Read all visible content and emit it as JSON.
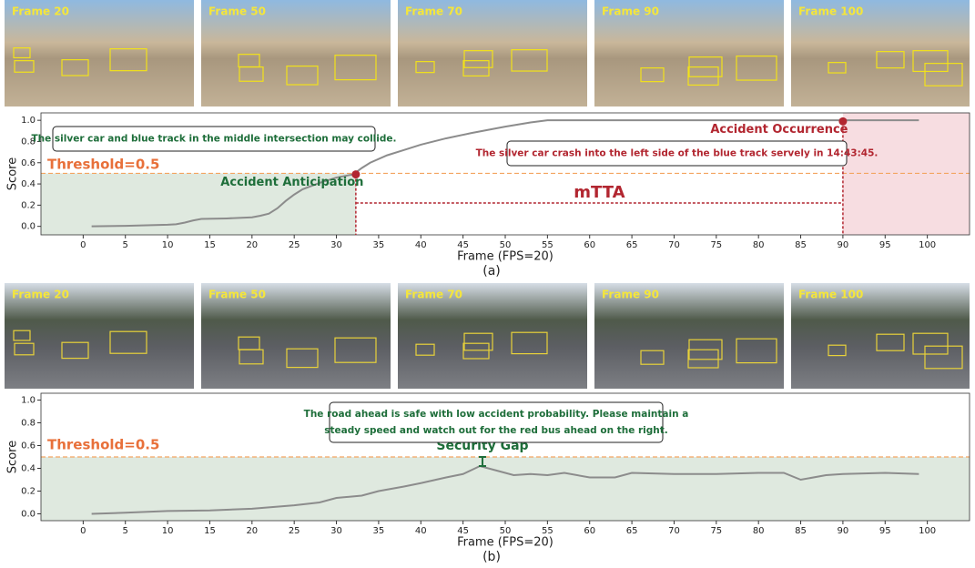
{
  "chart_data": [
    {
      "type": "line",
      "caption": "(a)",
      "frames": [
        "Frame 20",
        "Frame 50",
        "Frame 70",
        "Frame 90",
        "Frame 100"
      ],
      "xlabel": "Frame (FPS=20)",
      "ylabel": "Score",
      "xlim": [
        -5,
        105
      ],
      "ylim": [
        -0.08,
        1.07
      ],
      "xticks": [
        0,
        5,
        10,
        15,
        20,
        25,
        30,
        35,
        40,
        45,
        50,
        55,
        60,
        65,
        70,
        75,
        80,
        85,
        90,
        95,
        100
      ],
      "yticks": [
        {
          "value": 0,
          "label": "0.0"
        },
        0.2,
        0.4,
        0.6,
        0.8,
        {
          "value": 1,
          "label": "1.0"
        }
      ],
      "series": [
        {
          "color": "#8c8c8c",
          "x": [
            1,
            5,
            10,
            11,
            12,
            13,
            14,
            17,
            20,
            21,
            22,
            23,
            24,
            25,
            26,
            28,
            30,
            32,
            33,
            34,
            36,
            38,
            40,
            43,
            46,
            50,
            53,
            55,
            60,
            70,
            80,
            90,
            99
          ],
          "values": [
            0.0,
            0.005,
            0.015,
            0.02,
            0.035,
            0.055,
            0.07,
            0.075,
            0.085,
            0.1,
            0.12,
            0.17,
            0.24,
            0.3,
            0.35,
            0.41,
            0.46,
            0.49,
            0.55,
            0.6,
            0.67,
            0.72,
            0.77,
            0.83,
            0.88,
            0.94,
            0.98,
            1.0,
            1.0,
            1.0,
            1.0,
            1.0,
            1.0
          ]
        }
      ],
      "threshold": {
        "value": 0.5,
        "label": "Threshold=0.5",
        "color": "#f4a460"
      },
      "anticipation": {
        "label": "Accident Anticipation",
        "x": 32.3,
        "y": 0.49
      },
      "occurrence": {
        "label": "Accident Occurrence",
        "x": 90,
        "y": 0.99
      },
      "mtta": {
        "label": "mTTA",
        "y": 0.22
      },
      "notes": [
        [
          "The silver car and blue track in the middle intersection may collide."
        ],
        [
          "The silver car crash into the left side of the blue track servely in 14:43:45."
        ]
      ]
    },
    {
      "type": "line",
      "caption": "(b)",
      "frames": [
        "Frame 20",
        "Frame 50",
        "Frame 70",
        "Frame 90",
        "Frame 100"
      ],
      "xlabel": "Frame (FPS=20)",
      "ylabel": "Score",
      "xlim": [
        -5,
        105
      ],
      "ylim": [
        -0.06,
        1.06
      ],
      "xticks": [
        0,
        5,
        10,
        15,
        20,
        25,
        30,
        35,
        40,
        45,
        50,
        55,
        60,
        65,
        70,
        75,
        80,
        85,
        90,
        95,
        100
      ],
      "yticks": [
        {
          "value": 0,
          "label": "0.0"
        },
        0.2,
        0.4,
        0.6,
        0.8,
        {
          "value": 1,
          "label": "1.0"
        }
      ],
      "series": [
        {
          "color": "#8c8c8c",
          "x": [
            1,
            5,
            10,
            15,
            20,
            25,
            28,
            30,
            33,
            35,
            38,
            40,
            43,
            45,
            47,
            49,
            51,
            53,
            55,
            57,
            60,
            63,
            65,
            70,
            75,
            80,
            83,
            85,
            88,
            90,
            95,
            99
          ],
          "values": [
            0.0,
            0.01,
            0.025,
            0.03,
            0.045,
            0.075,
            0.1,
            0.14,
            0.16,
            0.2,
            0.24,
            0.27,
            0.32,
            0.35,
            0.42,
            0.38,
            0.34,
            0.35,
            0.34,
            0.36,
            0.32,
            0.32,
            0.36,
            0.35,
            0.35,
            0.36,
            0.36,
            0.3,
            0.34,
            0.35,
            0.36,
            0.35
          ]
        }
      ],
      "threshold": {
        "value": 0.5,
        "label": "Threshold=0.5",
        "color": "#f4a460"
      },
      "gap": {
        "label": "Security Gap",
        "x": 47.3,
        "low": 0.42,
        "high": 0.5
      },
      "notes": [
        [
          "The road ahead is safe with low accident probability. Please maintain a",
          "steady speed and watch out for the red bus ahead on the right."
        ]
      ]
    }
  ]
}
